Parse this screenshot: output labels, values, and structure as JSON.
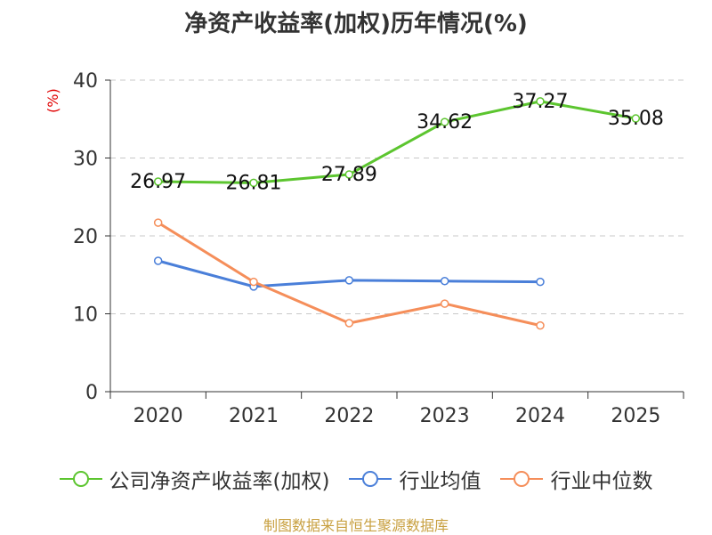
{
  "chart_data": {
    "type": "line",
    "title": "净资产收益率(加权)历年情况(%)",
    "ylabel": "(%)",
    "xlabel": "",
    "categories": [
      "2020",
      "2021",
      "2022",
      "2023",
      "2024",
      "2025"
    ],
    "ylim": [
      0,
      40
    ],
    "yticks": [
      0,
      10,
      20,
      30,
      40
    ],
    "grid": true,
    "legend_position": "bottom",
    "series": [
      {
        "name": "公司净资产收益率(加权)",
        "color": "#5cc52f",
        "values": [
          26.97,
          26.81,
          27.89,
          34.62,
          37.27,
          35.08
        ],
        "labels": [
          "26.97",
          "26.81",
          "27.89",
          "34.62",
          "37.27",
          "35.08"
        ],
        "show_labels": true
      },
      {
        "name": "行业均值",
        "color": "#4a7fd9",
        "values": [
          16.8,
          13.5,
          14.3,
          14.2,
          14.1,
          null
        ],
        "show_labels": false
      },
      {
        "name": "行业中位数",
        "color": "#f58e5a",
        "values": [
          21.7,
          14.1,
          8.8,
          11.3,
          8.5,
          null
        ],
        "show_labels": false
      }
    ]
  },
  "source": "制图数据来自恒生聚源数据库"
}
